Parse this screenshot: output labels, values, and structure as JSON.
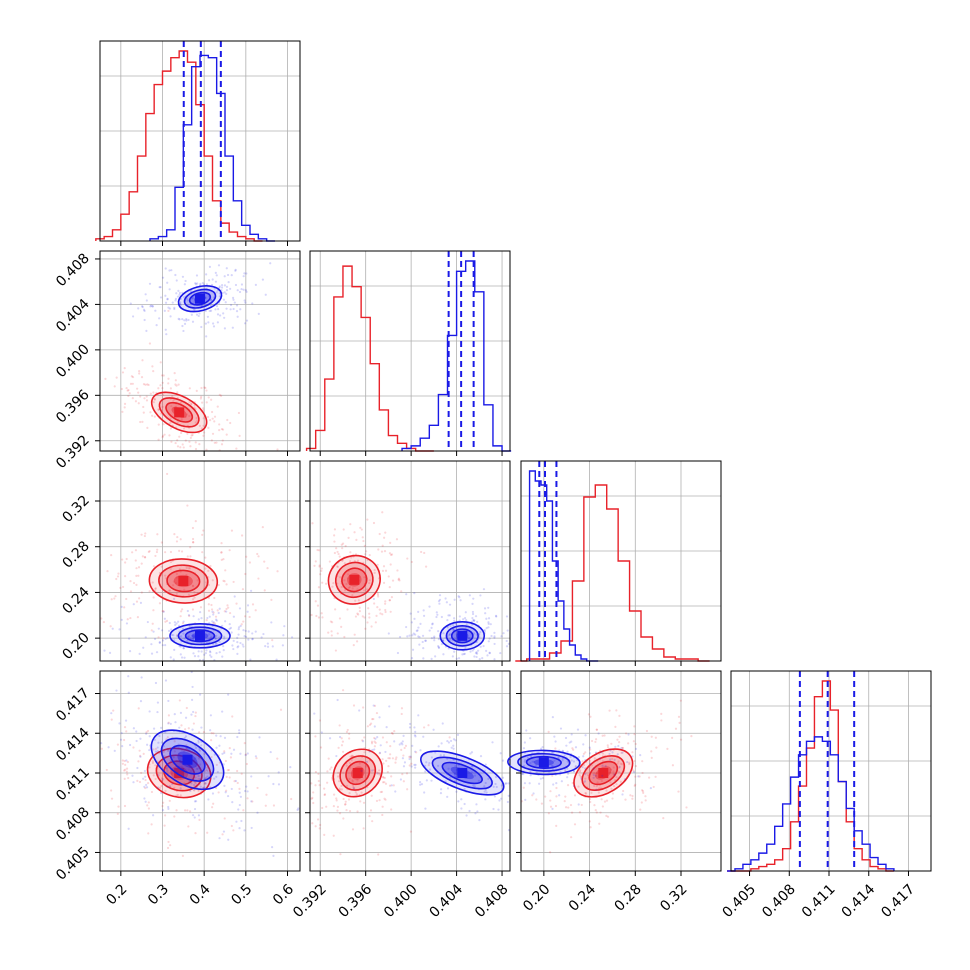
{
  "chart_data": {
    "type": "corner",
    "parameters": [
      {
        "ticks": [
          "0.2",
          "0.3",
          "0.4",
          "0.5",
          "0.6"
        ],
        "range": [
          0.15,
          0.63
        ]
      },
      {
        "ticks": [
          "0.392",
          "0.396",
          "0.400",
          "0.404",
          "0.408"
        ],
        "range": [
          0.3911,
          0.4087
        ]
      },
      {
        "ticks": [
          "0.20",
          "0.24",
          "0.28",
          "0.32"
        ],
        "range": [
          0.18,
          0.355
        ]
      },
      {
        "ticks": [
          "0.405",
          "0.408",
          "0.411",
          "0.414",
          "0.417"
        ],
        "range": [
          0.4036,
          0.4187
        ]
      }
    ],
    "grid": true,
    "colors": {
      "red": "#e8222a",
      "blue": "#1a1ae6"
    },
    "series": [
      {
        "color": "red",
        "marginals": [
          {
            "x": [
              0.15,
              0.17,
              0.19,
              0.21,
              0.23,
              0.25,
              0.27,
              0.29,
              0.31,
              0.33,
              0.35,
              0.37,
              0.39,
              0.41,
              0.43,
              0.45,
              0.47,
              0.49,
              0.51,
              0.53
            ],
            "y": [
              1,
              2,
              5,
              12,
              22,
              38,
              57,
              70,
              76,
              82,
              85,
              80,
              61,
              38,
              18,
              8,
              4,
              2,
              1,
              0
            ]
          },
          {
            "x": [
              0.3912,
              0.392,
              0.3928,
              0.3936,
              0.3944,
              0.3952,
              0.396,
              0.3968,
              0.3976,
              0.3984,
              0.3992,
              0.4,
              0.4008,
              0.4016
            ],
            "y": [
              1,
              8,
              28,
              60,
              72,
              64,
              52,
              34,
              16,
              6,
              3,
              1,
              0,
              0
            ]
          },
          {
            "x": [
              0.18,
              0.19,
              0.2,
              0.21,
              0.22,
              0.23,
              0.24,
              0.25,
              0.26,
              0.27,
              0.28,
              0.29,
              0.3,
              0.31,
              0.32,
              0.33,
              0.34
            ],
            "y": [
              0,
              1,
              1,
              4,
              10,
              40,
              82,
              88,
              76,
              50,
              25,
              12,
              6,
              2,
              1,
              1,
              0
            ]
          },
          {
            "x": [
              0.4036,
              0.4042,
              0.4048,
              0.4054,
              0.406,
              0.4066,
              0.4072,
              0.4078,
              0.4084,
              0.409,
              0.4096,
              0.4102,
              0.4108,
              0.4114,
              0.412,
              0.4126,
              0.4132,
              0.4138,
              0.4144,
              0.415,
              0.4156
            ],
            "y": [
              0,
              0,
              0,
              1,
              2,
              3,
              5,
              10,
              22,
              38,
              55,
              78,
              85,
              72,
              40,
              22,
              10,
              5,
              2,
              1,
              0
            ]
          }
        ],
        "peaks": [
          [
            0.34,
            0.3945
          ],
          [
            0.35,
            0.25
          ],
          [
            0.395,
            0.251
          ],
          [
            0.34,
            0.411
          ],
          [
            0.3953,
            0.411
          ],
          [
            0.252,
            0.411
          ]
        ]
      },
      {
        "color": "blue",
        "marginals": [
          {
            "x": [
              0.28,
              0.3,
              0.32,
              0.34,
              0.36,
              0.38,
              0.4,
              0.42,
              0.44,
              0.46,
              0.48,
              0.5,
              0.52,
              0.54,
              0.56
            ],
            "y": [
              1,
              2,
              5,
              24,
              52,
              78,
              83,
              82,
              66,
              38,
              18,
              7,
              3,
              1,
              0
            ]
          },
          {
            "x": [
              0.3996,
              0.4004,
              0.4012,
              0.402,
              0.4028,
              0.4036,
              0.4044,
              0.4052,
              0.406,
              0.4068,
              0.4076,
              0.4084
            ],
            "y": [
              1,
              2,
              5,
              10,
              22,
              45,
              70,
              74,
              62,
              18,
              2,
              0
            ]
          },
          {
            "x": [
              0.19,
              0.195,
              0.2,
              0.205,
              0.21,
              0.215,
              0.22,
              0.225,
              0.23,
              0.235,
              0.24,
              0.245
            ],
            "y": [
              95,
              90,
              88,
              80,
              50,
              30,
              16,
              8,
              3,
              1,
              0,
              0
            ]
          },
          {
            "x": [
              0.4036,
              0.4042,
              0.4048,
              0.4054,
              0.406,
              0.4066,
              0.4072,
              0.4078,
              0.4084,
              0.409,
              0.4096,
              0.4102,
              0.4108,
              0.4114,
              0.412,
              0.4126,
              0.4132,
              0.4138,
              0.4144,
              0.415,
              0.4156
            ],
            "y": [
              0,
              1,
              3,
              5,
              8,
              12,
              20,
              30,
              42,
              52,
              58,
              60,
              58,
              52,
              40,
              28,
              18,
              12,
              6,
              3,
              1
            ]
          }
        ],
        "quantiles": [
          [
            0.351,
            0.392,
            0.44
          ],
          [
            0.4033,
            0.4044,
            0.4055
          ],
          [
            0.196,
            0.201,
            0.211
          ],
          [
            0.4088,
            0.4109,
            0.4129
          ]
        ],
        "peaks": [
          [
            0.39,
            0.4045
          ],
          [
            0.39,
            0.202
          ],
          [
            0.4045,
            0.202
          ],
          [
            0.36,
            0.412
          ],
          [
            0.4045,
            0.411
          ],
          [
            0.2,
            0.4118
          ]
        ]
      }
    ]
  }
}
